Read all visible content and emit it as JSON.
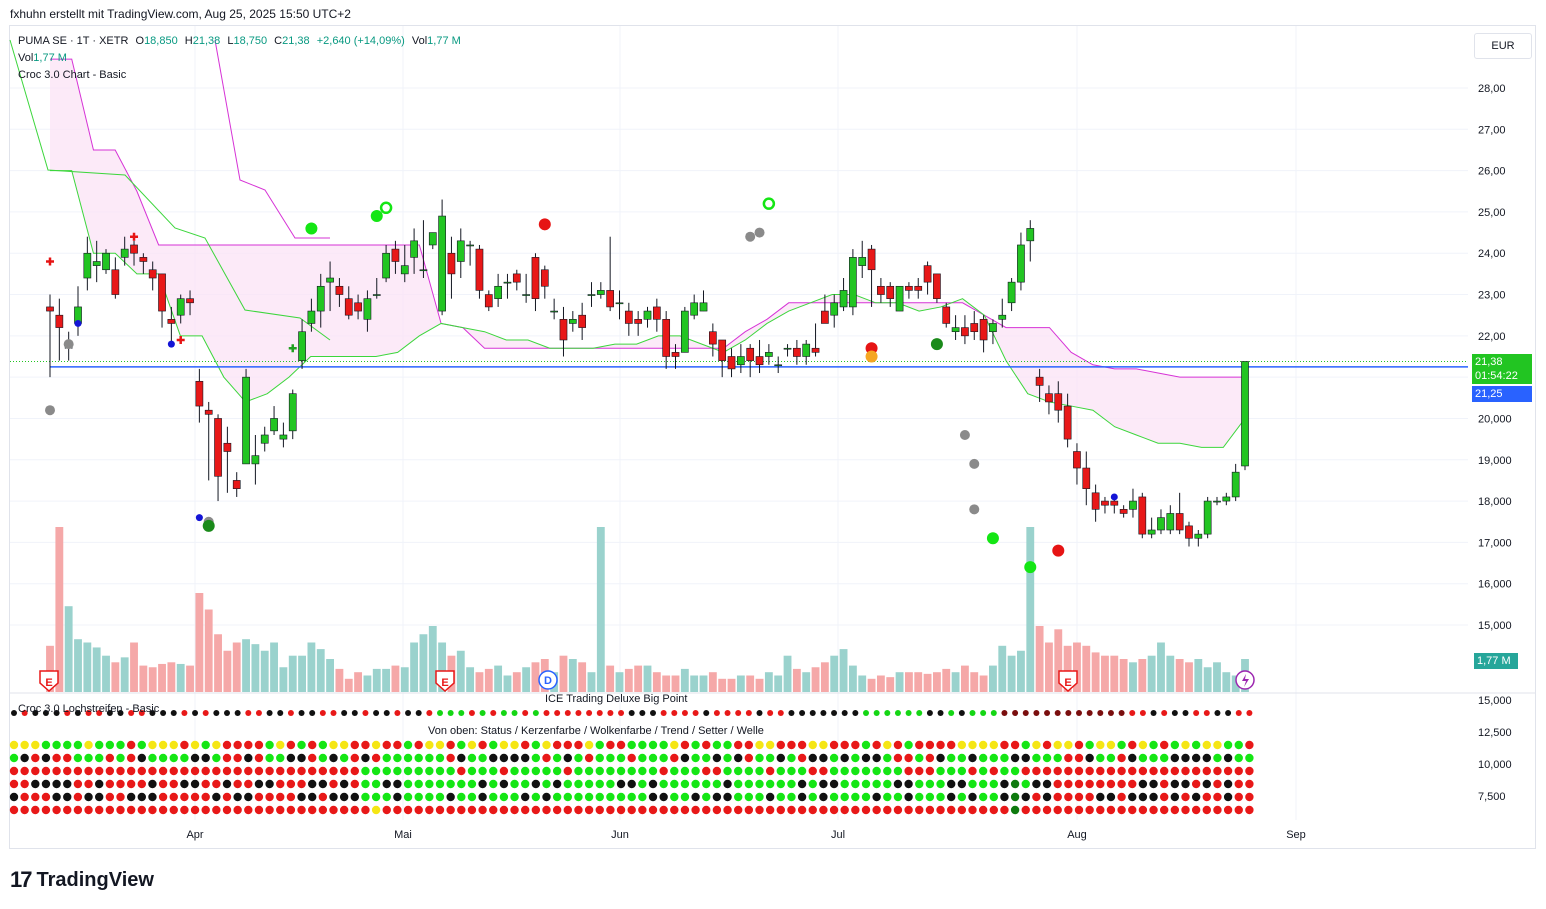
{
  "header": {
    "attribution": "fxhuhn erstellt mit TradingView.com, Aug 25, 2025 15:50 UTC+2"
  },
  "legend": {
    "symbol": "PUMA SE · 1T · XETR",
    "o_label": "O",
    "o_val": "18,850",
    "h_label": "H",
    "h_val": "21,38",
    "l_label": "L",
    "l_val": "18,750",
    "c_label": "C",
    "c_val": "21,38",
    "change": "+2,640 (+14,09%)",
    "vol_label": "Vol",
    "vol_val": "1,77 M",
    "vol2_label": "Vol",
    "vol2_val": "1,77 M",
    "indicator": "Croc 3.0 Chart - Basic"
  },
  "currency": "EUR",
  "price_axis": {
    "ticks": [
      "28,00",
      "27,00",
      "26,00",
      "25,00",
      "24,00",
      "23,00",
      "22,00",
      "20,000",
      "19,000",
      "18,000",
      "17,000",
      "16,000",
      "15,000"
    ],
    "last_price": "21,38",
    "countdown": "01:54:22",
    "line_price": "21,25",
    "volume_tag": "1,77 M",
    "colors": {
      "last": "#22c522",
      "line": "#2962ff",
      "vol": "#26a69a"
    }
  },
  "lower_axis": {
    "ticks": [
      "15,000",
      "12,500",
      "10,000",
      "7,500"
    ]
  },
  "event_markers": {
    "earnings": "E",
    "dividend": "D"
  },
  "panels": {
    "big_point": "ICE Trading Deluxe Big Point",
    "stripes": "Croc 3.0 Lochstreifen - Basic",
    "stripes_desc": "Von oben: Status / Kerzenfarbe / Wolkenfarbe / Trend / Setter / Welle"
  },
  "time_axis": [
    "Apr",
    "Mai",
    "Jun",
    "Jul",
    "Aug",
    "Sep"
  ],
  "logo_text": "TradingView",
  "chart_data": {
    "type": "candlestick",
    "ylim": [
      14.4,
      28.7
    ],
    "hline": 21.25,
    "candles": [
      [
        22.7,
        22.6,
        23.0,
        21.0
      ],
      [
        22.5,
        22.2,
        22.9,
        21.4
      ],
      [
        21.7,
        21.8,
        22.1,
        21.4
      ],
      [
        22.3,
        22.7,
        23.2,
        22.0
      ],
      [
        23.4,
        24.0,
        24.4,
        23.1
      ],
      [
        23.7,
        23.8,
        24.3,
        23.3
      ],
      [
        23.6,
        24.0,
        24.1,
        23.5
      ],
      [
        23.6,
        23.0,
        23.9,
        22.9
      ],
      [
        23.9,
        24.1,
        24.4,
        23.7
      ],
      [
        24.2,
        24.0,
        24.3,
        23.7
      ],
      [
        23.9,
        23.8,
        24.0,
        23.5
      ],
      [
        23.6,
        23.4,
        23.8,
        23.1
      ],
      [
        23.5,
        22.6,
        23.5,
        22.2
      ],
      [
        22.4,
        22.3,
        22.7,
        21.8
      ],
      [
        22.5,
        22.9,
        23.0,
        22.3
      ],
      [
        22.9,
        22.8,
        23.1,
        22.5
      ],
      [
        20.9,
        20.3,
        21.2,
        19.9
      ],
      [
        20.2,
        20.1,
        20.4,
        18.5
      ],
      [
        20.0,
        18.6,
        20.1,
        18.0
      ],
      [
        19.4,
        19.2,
        19.8,
        18.2
      ],
      [
        18.5,
        18.3,
        18.7,
        18.1
      ],
      [
        18.9,
        21.0,
        21.2,
        18.9
      ],
      [
        18.9,
        19.1,
        19.6,
        18.4
      ],
      [
        19.4,
        19.6,
        19.8,
        19.2
      ],
      [
        19.7,
        20.0,
        20.3,
        19.6
      ],
      [
        19.5,
        19.6,
        19.9,
        19.3
      ],
      [
        19.7,
        20.6,
        20.7,
        19.5
      ],
      [
        21.4,
        22.1,
        22.4,
        21.2
      ],
      [
        22.3,
        22.6,
        22.9,
        22.1
      ],
      [
        22.6,
        23.2,
        23.5,
        22.2
      ],
      [
        23.3,
        23.4,
        23.8,
        22.6
      ],
      [
        23.2,
        23.0,
        23.4,
        22.7
      ],
      [
        22.9,
        22.5,
        23.2,
        22.4
      ],
      [
        22.8,
        22.6,
        23.0,
        22.4
      ],
      [
        22.4,
        22.9,
        23.1,
        22.1
      ],
      [
        23.0,
        23.0,
        23.4,
        22.9
      ],
      [
        23.4,
        24.0,
        24.2,
        23.3
      ],
      [
        24.1,
        23.8,
        24.3,
        23.5
      ],
      [
        23.5,
        23.7,
        24.2,
        23.3
      ],
      [
        23.9,
        24.3,
        24.6,
        23.5
      ],
      [
        23.6,
        23.6,
        24.8,
        23.4
      ],
      [
        24.2,
        24.5,
        24.5,
        24.1
      ],
      [
        22.6,
        24.9,
        25.3,
        22.5
      ],
      [
        24.0,
        23.5,
        24.4,
        22.9
      ],
      [
        23.8,
        24.3,
        24.6,
        23.4
      ],
      [
        24.2,
        24.2,
        24.3,
        23.7
      ],
      [
        24.1,
        23.1,
        24.2,
        22.9
      ],
      [
        23.0,
        22.7,
        23.1,
        22.6
      ],
      [
        22.9,
        23.2,
        23.5,
        22.7
      ],
      [
        23.3,
        23.3,
        23.5,
        22.9
      ],
      [
        23.5,
        23.3,
        23.6,
        23.1
      ],
      [
        23.0,
        23.0,
        23.5,
        22.8
      ],
      [
        23.9,
        22.9,
        24.0,
        22.6
      ],
      [
        23.6,
        23.2,
        23.7,
        22.9
      ],
      [
        22.6,
        22.6,
        22.9,
        22.4
      ],
      [
        22.4,
        21.9,
        22.7,
        21.5
      ],
      [
        22.3,
        22.4,
        22.6,
        22.1
      ],
      [
        22.5,
        22.2,
        22.8,
        21.9
      ],
      [
        23.0,
        23.0,
        23.3,
        22.7
      ],
      [
        23.0,
        23.1,
        23.3,
        22.9
      ],
      [
        23.1,
        22.7,
        24.4,
        22.6
      ],
      [
        22.8,
        22.8,
        23.1,
        22.4
      ],
      [
        22.6,
        22.3,
        22.8,
        22.0
      ],
      [
        22.4,
        22.3,
        22.6,
        22.0
      ],
      [
        22.4,
        22.6,
        22.7,
        22.2
      ],
      [
        22.7,
        22.4,
        22.9,
        22.1
      ],
      [
        22.4,
        21.5,
        22.6,
        21.2
      ],
      [
        21.6,
        21.5,
        21.8,
        21.2
      ],
      [
        21.6,
        22.6,
        22.7,
        21.6
      ],
      [
        22.5,
        22.8,
        23.0,
        22.4
      ],
      [
        22.6,
        22.8,
        23.1,
        22.6
      ],
      [
        22.1,
        21.8,
        22.3,
        21.5
      ],
      [
        21.9,
        21.4,
        21.9,
        21.0
      ],
      [
        21.5,
        21.2,
        21.7,
        21.0
      ],
      [
        21.3,
        21.5,
        21.8,
        21.1
      ],
      [
        21.7,
        21.4,
        21.8,
        21.0
      ],
      [
        21.5,
        21.3,
        21.9,
        21.1
      ],
      [
        21.5,
        21.6,
        21.8,
        21.3
      ],
      [
        21.3,
        21.3,
        21.5,
        21.1
      ],
      [
        21.7,
        21.7,
        21.8,
        21.5
      ],
      [
        21.7,
        21.5,
        21.9,
        21.3
      ],
      [
        21.5,
        21.8,
        21.9,
        21.3
      ],
      [
        21.7,
        21.6,
        22.3,
        21.5
      ],
      [
        22.6,
        22.3,
        23.0,
        22.4
      ],
      [
        22.5,
        22.8,
        23.0,
        22.2
      ],
      [
        22.7,
        23.1,
        23.4,
        22.6
      ],
      [
        22.7,
        23.9,
        24.1,
        22.5
      ],
      [
        23.7,
        23.9,
        24.3,
        23.4
      ],
      [
        24.1,
        23.6,
        24.2,
        22.7
      ],
      [
        23.2,
        23.0,
        23.4,
        22.8
      ],
      [
        23.2,
        22.9,
        23.3,
        22.7
      ],
      [
        22.6,
        23.2,
        23.2,
        22.6
      ],
      [
        23.2,
        23.1,
        23.3,
        22.9
      ],
      [
        23.2,
        23.1,
        23.4,
        22.9
      ],
      [
        23.7,
        23.3,
        23.8,
        23.0
      ],
      [
        23.5,
        22.9,
        23.5,
        22.8
      ],
      [
        22.7,
        22.3,
        22.8,
        22.2
      ],
      [
        22.1,
        22.2,
        22.5,
        21.9
      ],
      [
        22.2,
        22.0,
        22.5,
        21.8
      ],
      [
        22.3,
        22.1,
        22.6,
        21.9
      ],
      [
        22.4,
        21.9,
        22.5,
        21.6
      ],
      [
        22.1,
        22.3,
        22.4,
        21.8
      ],
      [
        22.4,
        22.5,
        22.9,
        22.2
      ],
      [
        22.8,
        23.3,
        23.4,
        22.6
      ],
      [
        23.3,
        24.2,
        24.5,
        23.1
      ],
      [
        24.3,
        24.6,
        24.8,
        23.8
      ],
      [
        21.0,
        20.8,
        21.2,
        20.4
      ],
      [
        20.6,
        20.4,
        20.8,
        20.1
      ],
      [
        20.6,
        20.2,
        20.9,
        19.9
      ],
      [
        20.3,
        19.5,
        20.6,
        19.3
      ],
      [
        19.2,
        18.8,
        19.4,
        18.4
      ],
      [
        18.8,
        18.3,
        19.2,
        17.9
      ],
      [
        18.2,
        17.8,
        18.4,
        17.5
      ],
      [
        18.0,
        17.9,
        18.1,
        17.7
      ],
      [
        18.0,
        17.9,
        18.1,
        17.7
      ],
      [
        17.8,
        17.7,
        17.9,
        17.6
      ],
      [
        17.8,
        18.0,
        18.3,
        17.6
      ],
      [
        18.1,
        17.2,
        18.2,
        17.1
      ],
      [
        17.2,
        17.3,
        17.6,
        17.1
      ],
      [
        17.3,
        17.6,
        17.8,
        17.2
      ],
      [
        17.3,
        17.7,
        17.9,
        17.2
      ],
      [
        17.7,
        17.3,
        18.2,
        17.2
      ],
      [
        17.4,
        17.1,
        17.5,
        16.9
      ],
      [
        17.1,
        17.2,
        17.3,
        16.9
      ],
      [
        17.2,
        18.0,
        18.1,
        17.1
      ],
      [
        18.0,
        18.0,
        18.1,
        17.9
      ],
      [
        18.0,
        18.1,
        18.2,
        17.9
      ],
      [
        18.1,
        18.7,
        18.9,
        18.0
      ],
      [
        18.85,
        21.38,
        21.38,
        18.75
      ]
    ],
    "volume": [
      0.28,
      1.0,
      0.52,
      0.32,
      0.3,
      0.27,
      0.22,
      0.18,
      0.21,
      0.3,
      0.16,
      0.15,
      0.17,
      0.18,
      0.17,
      0.16,
      0.6,
      0.5,
      0.35,
      0.25,
      0.3,
      0.32,
      0.29,
      0.25,
      0.3,
      0.15,
      0.22,
      0.22,
      0.3,
      0.26,
      0.2,
      0.14,
      0.08,
      0.12,
      0.1,
      0.14,
      0.14,
      0.16,
      0.15,
      0.3,
      0.35,
      0.4,
      0.3,
      0.22,
      0.25,
      0.15,
      0.12,
      0.14,
      0.16,
      0.1,
      0.12,
      0.15,
      0.18,
      0.2,
      0.12,
      0.22,
      0.2,
      0.18,
      0.12,
      1.0,
      0.16,
      0.12,
      0.14,
      0.16,
      0.16,
      0.12,
      0.1,
      0.1,
      0.14,
      0.1,
      0.1,
      0.12,
      0.08,
      0.08,
      0.1,
      0.1,
      0.08,
      0.12,
      0.1,
      0.22,
      0.14,
      0.12,
      0.15,
      0.18,
      0.22,
      0.26,
      0.16,
      0.1,
      0.08,
      0.1,
      0.09,
      0.12,
      0.12,
      0.12,
      0.11,
      0.12,
      0.14,
      0.12,
      0.16,
      0.12,
      0.1,
      0.16,
      0.28,
      0.22,
      0.25,
      1.0,
      0.4,
      0.3,
      0.38,
      0.28,
      0.3,
      0.28,
      0.24,
      0.22,
      0.22,
      0.2,
      0.18,
      0.2,
      0.22,
      0.3,
      0.22,
      0.2,
      0.18,
      0.2,
      0.15,
      0.18,
      0.12,
      0.1,
      0.2
    ],
    "baseline": [
      [
        23.0,
        28.8
      ],
      [
        18.0,
        27.2
      ],
      [
        16.0,
        24.0
      ],
      [
        14.5,
        22.5
      ],
      [
        12.5,
        22.3
      ],
      [
        11.0,
        22.6
      ],
      [
        10.0,
        22.5
      ],
      [
        8.5,
        22.7
      ],
      [
        7.5,
        22.6
      ],
      [
        6.5,
        22.4
      ],
      [
        6.5,
        21.8
      ],
      [
        5.5,
        21.0
      ],
      [
        5.0,
        21.5
      ],
      [
        5.0,
        21.5
      ],
      [
        4.5,
        20.2
      ],
      [
        3.0,
        20.6
      ],
      [
        2.0,
        20.6
      ],
      [
        1.0,
        20.5
      ],
      [
        0.0,
        20.6
      ],
      [
        -1.0,
        20.5
      ],
      [
        -2.0,
        21.1
      ],
      [
        -3.0,
        22.3
      ],
      [
        -4.0,
        23.6
      ],
      [
        -5.0,
        24.2
      ],
      [
        -6.0,
        24.3
      ],
      [
        -7.0,
        24.0
      ],
      [
        -8.0,
        24.8
      ],
      [
        -9.0,
        24.9
      ],
      [
        -10.0,
        25.2
      ]
    ],
    "cloud_upper": [
      28.7,
      28.7,
      26.5,
      26.5,
      25.5,
      24.2,
      24.2,
      24.2,
      24.2,
      24.2,
      24.2,
      24.2,
      24.2,
      24.2,
      24.2,
      24.2,
      24.2,
      24.2,
      22.3,
      22.2,
      21.7,
      21.7,
      21.7,
      21.7,
      21.7,
      21.7,
      21.7,
      21.7,
      21.7,
      21.7,
      21.7,
      21.7,
      22.1,
      22.4,
      22.8,
      22.8,
      22.8,
      22.8,
      22.8,
      22.8,
      22.8,
      22.8,
      22.8,
      22.5,
      22.2,
      22.2,
      22.2,
      21.6,
      21.3,
      21.2,
      21.2,
      21.1,
      21.0,
      21.0,
      21.0,
      21.0
    ],
    "cloud_lower": [
      26.0,
      26.0,
      24.0,
      24.0,
      23.5,
      23.5,
      22.0,
      22.0,
      21.0,
      20.4,
      20.6,
      21.0,
      21.5,
      21.5,
      21.5,
      21.5,
      21.6,
      22.0,
      22.3,
      22.2,
      22.1,
      21.9,
      21.9,
      21.7,
      21.7,
      21.7,
      21.8,
      21.8,
      22.0,
      22.0,
      21.8,
      21.6,
      21.9,
      22.3,
      22.6,
      22.8,
      23.0,
      23.0,
      22.8,
      22.8,
      22.6,
      22.7,
      22.9,
      22.5,
      21.4,
      20.6,
      20.4,
      20.3,
      20.2,
      19.8,
      19.6,
      19.4,
      19.4,
      19.3,
      19.3,
      20.0
    ],
    "signals": [
      [
        "cross-red",
        0,
        23.8
      ],
      [
        "dot-gray",
        2,
        21.8
      ],
      [
        "dot-blue",
        3,
        22.3
      ],
      [
        "dot-gray",
        0,
        20.2
      ],
      [
        "cross-red",
        9,
        24.4
      ],
      [
        "dot-blue",
        13,
        21.8
      ],
      [
        "cross-red",
        14,
        21.9
      ],
      [
        "dot-blue",
        16,
        17.6
      ],
      [
        "dot-gray",
        17,
        17.5
      ],
      [
        "dot-green-dark",
        17,
        17.4
      ],
      [
        "cross-green",
        26,
        21.7
      ],
      [
        "dot-green",
        28,
        24.6
      ],
      [
        "dot-green",
        35,
        24.9
      ],
      [
        "ring-green",
        36,
        25.1
      ],
      [
        "dot-red",
        53,
        24.7
      ],
      [
        "dot-gray",
        75,
        24.4
      ],
      [
        "dot-gray",
        76,
        24.5
      ],
      [
        "ring-green",
        77,
        25.2
      ],
      [
        "dot-red",
        88,
        21.7
      ],
      [
        "dot-orange",
        88,
        21.5
      ],
      [
        "dot-green-dark",
        95,
        21.8
      ],
      [
        "dot-gray",
        98,
        19.6
      ],
      [
        "dot-gray",
        99,
        18.9
      ],
      [
        "dot-gray",
        99,
        17.8
      ],
      [
        "dot-green",
        101,
        17.1
      ],
      [
        "dot-green",
        105,
        16.4
      ],
      [
        "dot-red",
        108,
        16.8
      ],
      [
        "dot-blue",
        114,
        18.1
      ]
    ]
  }
}
